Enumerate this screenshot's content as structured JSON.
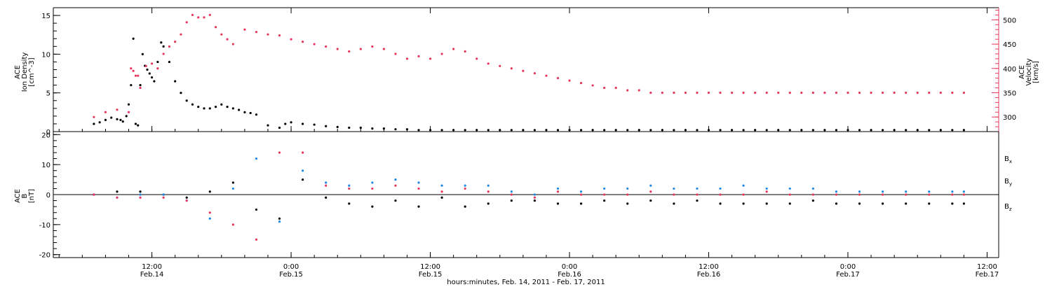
{
  "chart_data": [
    {
      "type": "scatter",
      "panel": "top",
      "left_label": {
        "line1": "ACE",
        "line2": "Ion Density",
        "line3": "[cm^-3]"
      },
      "right_label": {
        "line1": "ACE",
        "line2": "Velocity",
        "line3": "[km/s]"
      },
      "ylim_left": [
        0,
        16
      ],
      "yticks_left": [
        "0",
        "5",
        "10",
        "15"
      ],
      "ylim_right": [
        270,
        525
      ],
      "yticks_right": [
        "300",
        "350",
        "400",
        "450",
        "500"
      ],
      "colors": {
        "density": "#000000",
        "velocity": "#e8365d"
      },
      "series": [
        {
          "axis": "left",
          "x": [
            0.0,
            0.5,
            1.0,
            1.5,
            2.0,
            2.3,
            2.5,
            2.8,
            3.0,
            3.2,
            3.4,
            3.6,
            3.8,
            4.0,
            4.2,
            4.4,
            4.6,
            4.8,
            5.0,
            5.2,
            5.5,
            5.8,
            6.0,
            6.5,
            7.0,
            7.5,
            8.0,
            8.5,
            9.0,
            9.5,
            10.0,
            10.5,
            11.0,
            11.5,
            12.0,
            12.5,
            13.0,
            13.5,
            14.0,
            15.0,
            16.0,
            16.5,
            17.0,
            18.0,
            19.0,
            20.0,
            21.0,
            22.0,
            23.0,
            24.0,
            25.0,
            26.0,
            27.0,
            28.0,
            29.0,
            30.0,
            31.0,
            32.0,
            33.0,
            34.0,
            35.0,
            36.0,
            37.0,
            38.0,
            39.0,
            40.0,
            41.0,
            42.0,
            43.0,
            44.0,
            45.0,
            46.0,
            47.0,
            48.0,
            49.0,
            50.0,
            51.0,
            52.0,
            53.0,
            54.0,
            55.0,
            56.0,
            57.0,
            58.0,
            59.0,
            60.0,
            61.0,
            62.0,
            63.0,
            64.0,
            65.0,
            66.0,
            67.0,
            68.0,
            69.0,
            70.0,
            71.0,
            72.0,
            73.0,
            74.0,
            75.0
          ],
          "values": [
            1.0,
            1.2,
            1.5,
            1.8,
            1.6,
            1.5,
            1.3,
            2.0,
            3.5,
            6.0,
            12.0,
            1.0,
            0.8,
            6.0,
            10.0,
            8.5,
            8.0,
            7.5,
            7.0,
            6.5,
            9.0,
            11.5,
            11.0,
            9.0,
            6.5,
            5.0,
            4.0,
            3.5,
            3.2,
            3.0,
            3.0,
            3.2,
            3.5,
            3.2,
            3.0,
            2.8,
            2.5,
            2.4,
            2.2,
            0.8,
            0.5,
            1.0,
            1.2,
            1.0,
            0.9,
            0.7,
            0.6,
            0.5,
            0.5,
            0.4,
            0.4,
            0.3,
            0.3,
            0.2,
            0.2,
            0.2,
            0.2,
            0.2,
            0.2,
            0.2,
            0.2,
            0.2,
            0.2,
            0.2,
            0.2,
            0.2,
            0.2,
            0.2,
            0.2,
            0.2,
            0.2,
            0.2,
            0.2,
            0.2,
            0.2,
            0.2,
            0.2,
            0.2,
            0.2,
            0.2,
            0.2,
            0.2,
            0.2,
            0.2,
            0.2,
            0.2,
            0.2,
            0.2,
            0.2,
            0.2,
            0.2,
            0.2,
            0.2,
            0.2,
            0.2,
            0.2,
            0.2,
            0.2,
            0.2,
            0.2,
            0.2
          ]
        },
        {
          "axis": "right",
          "x": [
            0.0,
            1.0,
            2.0,
            3.0,
            3.2,
            3.4,
            3.6,
            3.8,
            4.0,
            4.5,
            5.0,
            5.5,
            6.0,
            6.5,
            7.0,
            7.5,
            8.0,
            8.5,
            9.0,
            9.5,
            10.0,
            10.5,
            11.0,
            11.5,
            12.0,
            13.0,
            14.0,
            15.0,
            16.0,
            17.0,
            18.0,
            19.0,
            20.0,
            21.0,
            22.0,
            23.0,
            24.0,
            25.0,
            26.0,
            27.0,
            28.0,
            29.0,
            30.0,
            31.0,
            32.0,
            33.0,
            34.0,
            35.0,
            36.0,
            37.0,
            38.0,
            39.0,
            40.0,
            41.0,
            42.0,
            43.0,
            44.0,
            45.0,
            46.0,
            47.0,
            48.0,
            49.0,
            50.0,
            51.0,
            52.0,
            53.0,
            54.0,
            55.0,
            56.0,
            57.0,
            58.0,
            59.0,
            60.0,
            61.0,
            62.0,
            63.0,
            64.0,
            65.0,
            66.0,
            67.0,
            68.0,
            69.0,
            70.0,
            71.0,
            72.0,
            73.0,
            74.0,
            75.0
          ],
          "values": [
            300,
            310,
            315,
            310,
            400,
            395,
            385,
            385,
            360,
            405,
            410,
            400,
            430,
            445,
            455,
            470,
            495,
            510,
            505,
            505,
            510,
            485,
            470,
            460,
            450,
            480,
            475,
            470,
            468,
            460,
            455,
            450,
            445,
            440,
            435,
            440,
            445,
            440,
            430,
            420,
            425,
            420,
            430,
            440,
            435,
            420,
            410,
            405,
            400,
            395,
            390,
            385,
            380,
            375,
            370,
            365,
            360,
            360,
            355,
            355,
            350,
            350,
            350,
            350,
            350,
            350,
            350,
            350,
            350,
            350,
            350,
            350,
            350,
            350,
            350,
            350,
            350,
            350,
            350,
            350,
            350,
            350,
            350,
            350,
            350,
            350,
            350,
            350
          ]
        }
      ]
    },
    {
      "type": "scatter",
      "panel": "bottom",
      "left_label": {
        "line1": "ACE",
        "line2": "B",
        "line3": "[nT]"
      },
      "ylim": [
        -21,
        21
      ],
      "yticks": [
        "-20",
        "-10",
        "0",
        "10",
        "20"
      ],
      "series": [
        {
          "name": "Bx",
          "label_main": "B",
          "label_sub": "x",
          "color": "#000000",
          "x": [
            0,
            2,
            4,
            6,
            8,
            10,
            12,
            14,
            16,
            18,
            20,
            22,
            24,
            26,
            28,
            30,
            32,
            34,
            36,
            38,
            40,
            42,
            44,
            46,
            48,
            50,
            52,
            54,
            56,
            58,
            60,
            62,
            64,
            66,
            68,
            70,
            72,
            74,
            75
          ],
          "values": [
            0,
            1,
            1,
            0,
            -1,
            1,
            4,
            -5,
            -8,
            5,
            -1,
            -3,
            -4,
            -2,
            -4,
            -1,
            -4,
            -3,
            -2,
            -2,
            -3,
            -3,
            -2,
            -3,
            -2,
            -3,
            -2,
            -3,
            -3,
            -3,
            -3,
            -2,
            -3,
            -3,
            -3,
            -3,
            -3,
            -3,
            -3
          ]
        },
        {
          "name": "By",
          "label_main": "B",
          "label_sub": "y",
          "color": "#1e88e5",
          "x": [
            0,
            2,
            4,
            6,
            8,
            10,
            12,
            14,
            16,
            18,
            20,
            22,
            24,
            26,
            28,
            30,
            32,
            34,
            36,
            38,
            40,
            42,
            44,
            46,
            48,
            50,
            52,
            54,
            56,
            58,
            60,
            62,
            64,
            66,
            68,
            70,
            72,
            74,
            75
          ],
          "values": [
            0,
            -1,
            0,
            0,
            -2,
            -8,
            2,
            12,
            -9,
            8,
            4,
            3,
            4,
            5,
            4,
            3,
            3,
            3,
            1,
            0,
            2,
            1,
            2,
            2,
            3,
            2,
            2,
            2,
            3,
            2,
            2,
            2,
            1,
            1,
            1,
            1,
            1,
            1,
            1
          ]
        },
        {
          "name": "Bz",
          "label_main": "B",
          "label_sub": "z",
          "color": "#e8365d",
          "x": [
            0,
            2,
            4,
            6,
            8,
            10,
            12,
            14,
            16,
            18,
            20,
            22,
            24,
            26,
            28,
            30,
            32,
            34,
            36,
            38,
            40,
            42,
            44,
            46,
            48,
            50,
            52,
            54,
            56,
            58,
            60,
            62,
            64,
            66,
            68,
            70,
            72,
            74,
            75
          ],
          "values": [
            0,
            -1,
            -1,
            -1,
            -2,
            -6,
            -10,
            -15,
            14,
            14,
            3,
            2,
            2,
            3,
            2,
            1,
            2,
            1,
            0,
            -1,
            1,
            0,
            0,
            0,
            1,
            0,
            0,
            0,
            0,
            1,
            0,
            0,
            0,
            0,
            0,
            0,
            0,
            0,
            0
          ]
        }
      ]
    }
  ],
  "x_axis": {
    "ticks": [
      {
        "time": "12:00",
        "date": "Feb.14",
        "h": 5
      },
      {
        "time": "0:00",
        "date": "Feb.15",
        "h": 17
      },
      {
        "time": "12:00",
        "date": "Feb.15",
        "h": 29
      },
      {
        "time": "0:00",
        "date": "Feb.16",
        "h": 41
      },
      {
        "time": "12:00",
        "date": "Feb.16",
        "h": 53
      },
      {
        "time": "0:00",
        "date": "Feb.17",
        "h": 65
      },
      {
        "time": "12:00",
        "date": "Feb.17",
        "h": 77
      }
    ],
    "xlim": [
      -3.5,
      78
    ],
    "label": "hours:minutes, Feb. 14, 2011 - Feb. 17, 2011"
  }
}
